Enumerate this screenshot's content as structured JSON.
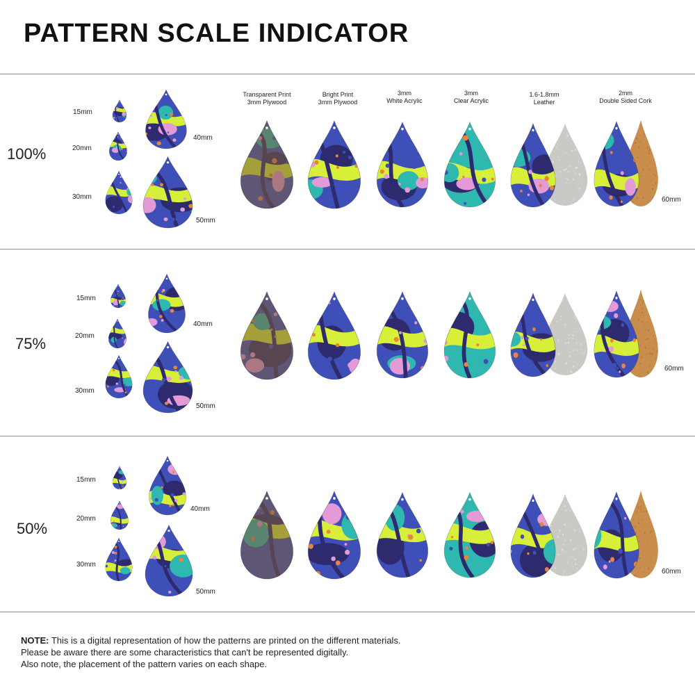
{
  "title": "PATTERN SCALE INDICATOR",
  "columns": [
    {
      "line1": "Transparent Print",
      "line2": "3mm Plywood"
    },
    {
      "line1": "Bright Print",
      "line2": "3mm Plywood"
    },
    {
      "line1": "3mm",
      "line2": "White Acrylic"
    },
    {
      "line1": "3mm",
      "line2": "Clear Acrylic"
    },
    {
      "line1": "1.6-1.8mm",
      "line2": "Leather"
    },
    {
      "line1": "2mm",
      "line2": "Double Sided Cork"
    }
  ],
  "sections": [
    {
      "scale": "100%",
      "size_labels": {
        "s15": "15mm",
        "s20": "20mm",
        "s30": "30mm",
        "s40": "40mm",
        "s50": "50mm",
        "s60": "60mm"
      }
    },
    {
      "scale": "75%",
      "size_labels": {
        "s15": "15mm",
        "s20": "20mm",
        "s30": "30mm",
        "s40": "40mm",
        "s50": "50mm",
        "s60": "60mm"
      }
    },
    {
      "scale": "50%",
      "size_labels": {
        "s15": "15mm",
        "s20": "20mm",
        "s30": "30mm",
        "s40": "40mm",
        "s50": "50mm",
        "s60": "60mm"
      }
    }
  ],
  "note": {
    "label": "NOTE:",
    "line1": "This is a digital representation of how the patterns are printed on the different materials.",
    "line2": "Please be aware there are some characteristics that can't be represented digitally.",
    "line3": "Also note, the placement of the pattern varies on each shape."
  },
  "colors": {
    "navy": "#2e2a6e",
    "royal": "#3f4fb8",
    "teal": "#2fb8b0",
    "lime": "#d8ef3a",
    "pink": "#e59ad8",
    "orange": "#e8853a",
    "leather": "#c9cac6",
    "cork": "#c98d4e",
    "wood": "#7a5b3c"
  }
}
